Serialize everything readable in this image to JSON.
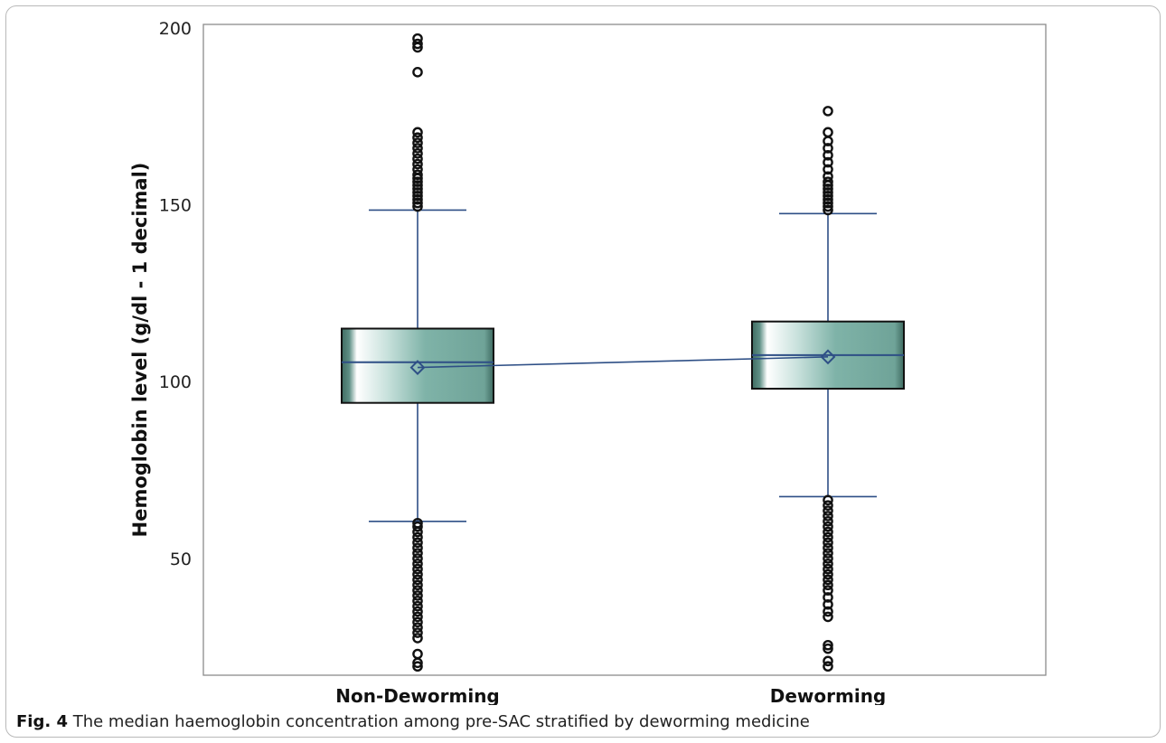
{
  "chart_data": {
    "type": "box",
    "ylabel": "Hemoglobin level (g/dl - 1 decimal)",
    "xlabel": "",
    "ylim": [
      17,
      201
    ],
    "yticks": [
      50,
      100,
      150,
      200
    ],
    "legend": "none",
    "grid": false,
    "categories": [
      "Non-Deworming",
      "Deworming"
    ],
    "boxes": [
      {
        "category": "Non-Deworming",
        "whisker_low": 60.5,
        "q1": 94,
        "median": 105.5,
        "q3": 115,
        "whisker_high": 148.5,
        "mean": 104,
        "outliers_high": [
          149.5,
          150.5,
          151.5,
          152.5,
          153.5,
          154.5,
          155.5,
          156.5,
          157.5,
          158.5,
          160,
          161.5,
          163,
          164.5,
          166,
          167.5,
          169,
          170.5,
          187.5,
          194.5,
          195.5,
          197
        ],
        "outliers_low": [
          19.5,
          20.5,
          23,
          27.5,
          29,
          30.5,
          32,
          33.5,
          35,
          36.5,
          38,
          39.5,
          41,
          42.5,
          44,
          45.5,
          47,
          48.5,
          50,
          51.5,
          53,
          54.5,
          56,
          57.5,
          59,
          60
        ]
      },
      {
        "category": "Deworming",
        "whisker_low": 67.5,
        "q1": 98,
        "median": 107.5,
        "q3": 117,
        "whisker_high": 147.5,
        "mean": 107,
        "outliers_high": [
          148.5,
          149.5,
          150.5,
          151.5,
          152.5,
          153.5,
          154.5,
          155.5,
          156.5,
          158,
          160,
          162,
          164,
          166,
          168,
          170.5,
          176.5
        ],
        "outliers_low": [
          19.5,
          21,
          24.5,
          25.5,
          33.5,
          35,
          37,
          39,
          41,
          42.5,
          44,
          45.5,
          47,
          48.5,
          50,
          51.5,
          53,
          54.5,
          56,
          57.5,
          59,
          60.5,
          62,
          63.5,
          65,
          66.5
        ]
      }
    ],
    "mean_line": true
  },
  "caption": {
    "label": "Fig. 4",
    "text": "The median haemoglobin concentration among pre-SAC stratified by deworming medicine"
  },
  "colors": {
    "box_dark": "#3f6b61",
    "box_fill": "#7fb3a8",
    "line": "#2e4f86",
    "outline": "#111111"
  }
}
